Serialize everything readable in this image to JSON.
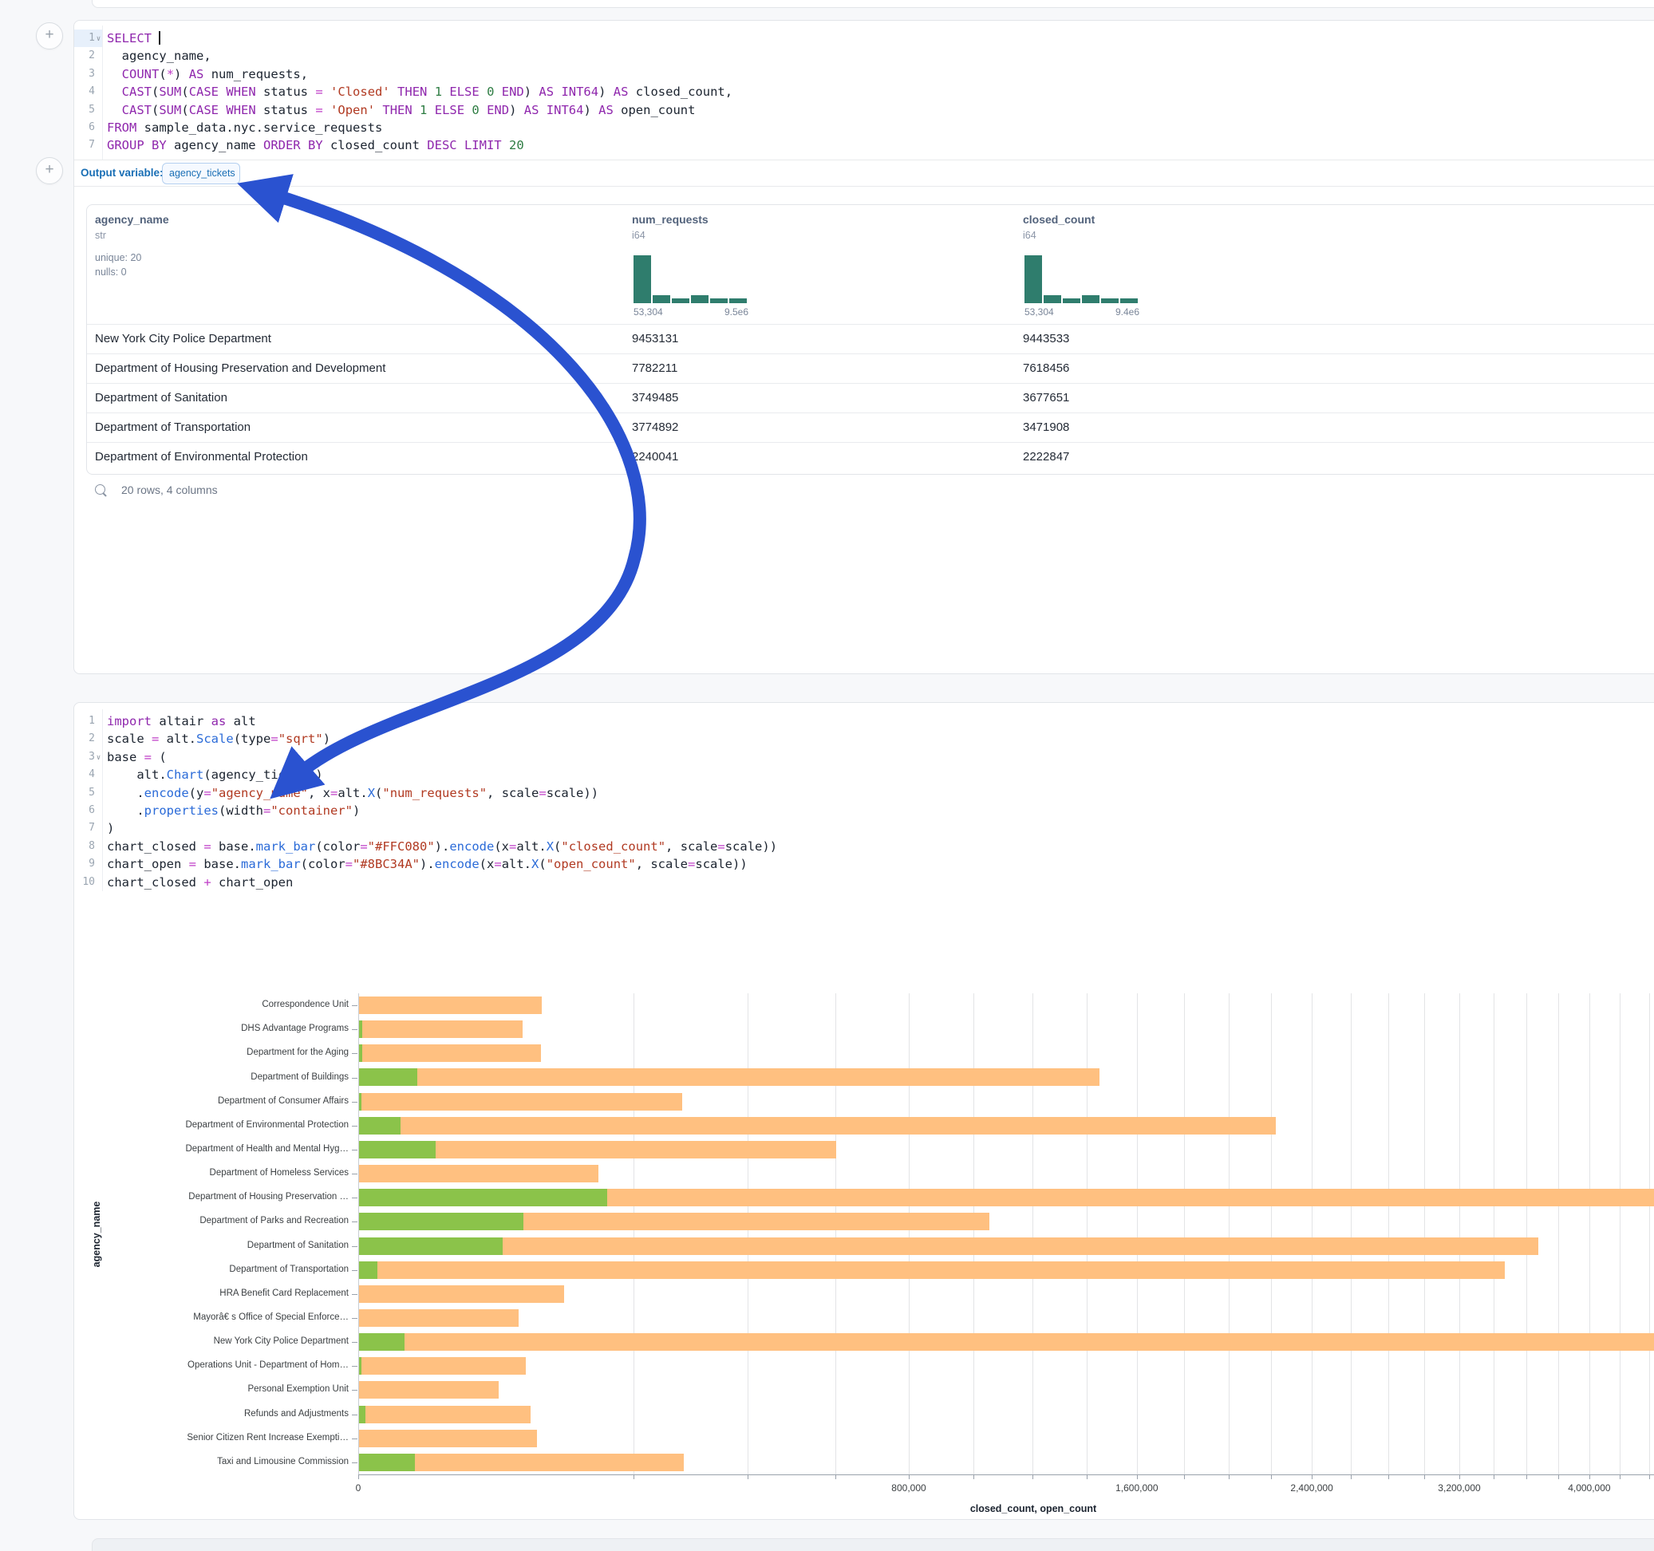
{
  "sql_cell": {
    "output_variable_label": "Output variable:",
    "output_variable_value": "agency_tickets",
    "lines": [
      {
        "n": "1",
        "fold": true,
        "active": true,
        "cursor": true,
        "tokens": [
          [
            "k",
            "SELECT"
          ],
          [
            "t",
            " "
          ]
        ]
      },
      {
        "n": "2",
        "tokens": [
          [
            "t",
            "  agency_name,"
          ]
        ]
      },
      {
        "n": "3",
        "tokens": [
          [
            "t",
            "  "
          ],
          [
            "k",
            "COUNT"
          ],
          [
            "t",
            "("
          ],
          [
            "o",
            "*"
          ],
          [
            "t",
            ") "
          ],
          [
            "k",
            "AS"
          ],
          [
            "t",
            " num_requests,"
          ]
        ]
      },
      {
        "n": "4",
        "tokens": [
          [
            "t",
            "  "
          ],
          [
            "k",
            "CAST"
          ],
          [
            "t",
            "("
          ],
          [
            "k",
            "SUM"
          ],
          [
            "t",
            "("
          ],
          [
            "k",
            "CASE"
          ],
          [
            "t",
            " "
          ],
          [
            "k",
            "WHEN"
          ],
          [
            "t",
            " status "
          ],
          [
            "o",
            "="
          ],
          [
            "t",
            " "
          ],
          [
            "s",
            "'Closed'"
          ],
          [
            "t",
            " "
          ],
          [
            "k",
            "THEN"
          ],
          [
            "t",
            " "
          ],
          [
            "n",
            "1"
          ],
          [
            "t",
            " "
          ],
          [
            "k",
            "ELSE"
          ],
          [
            "t",
            " "
          ],
          [
            "n",
            "0"
          ],
          [
            "t",
            " "
          ],
          [
            "k",
            "END"
          ],
          [
            "t",
            ") "
          ],
          [
            "k",
            "AS"
          ],
          [
            "t",
            " "
          ],
          [
            "k",
            "INT64"
          ],
          [
            "t",
            ") "
          ],
          [
            "k",
            "AS"
          ],
          [
            "t",
            " closed_count,"
          ]
        ]
      },
      {
        "n": "5",
        "tokens": [
          [
            "t",
            "  "
          ],
          [
            "k",
            "CAST"
          ],
          [
            "t",
            "("
          ],
          [
            "k",
            "SUM"
          ],
          [
            "t",
            "("
          ],
          [
            "k",
            "CASE"
          ],
          [
            "t",
            " "
          ],
          [
            "k",
            "WHEN"
          ],
          [
            "t",
            " status "
          ],
          [
            "o",
            "="
          ],
          [
            "t",
            " "
          ],
          [
            "s",
            "'Open'"
          ],
          [
            "t",
            " "
          ],
          [
            "k",
            "THEN"
          ],
          [
            "t",
            " "
          ],
          [
            "n",
            "1"
          ],
          [
            "t",
            " "
          ],
          [
            "k",
            "ELSE"
          ],
          [
            "t",
            " "
          ],
          [
            "n",
            "0"
          ],
          [
            "t",
            " "
          ],
          [
            "k",
            "END"
          ],
          [
            "t",
            ") "
          ],
          [
            "k",
            "AS"
          ],
          [
            "t",
            " "
          ],
          [
            "k",
            "INT64"
          ],
          [
            "t",
            ") "
          ],
          [
            "k",
            "AS"
          ],
          [
            "t",
            " open_count"
          ]
        ]
      },
      {
        "n": "6",
        "tokens": [
          [
            "k",
            "FROM"
          ],
          [
            "t",
            " sample_data.nyc.service_requests"
          ]
        ]
      },
      {
        "n": "7",
        "tokens": [
          [
            "k",
            "GROUP BY"
          ],
          [
            "t",
            " agency_name "
          ],
          [
            "k",
            "ORDER BY"
          ],
          [
            "t",
            " closed_count "
          ],
          [
            "k",
            "DESC"
          ],
          [
            "t",
            " "
          ],
          [
            "k",
            "LIMIT"
          ],
          [
            "t",
            " "
          ],
          [
            "n",
            "20"
          ]
        ]
      }
    ]
  },
  "result_table": {
    "columns": [
      {
        "name": "agency_name",
        "dtype": "str",
        "stats": [
          "unique: 20",
          "nulls: 0"
        ]
      },
      {
        "name": "num_requests",
        "dtype": "i64",
        "hist": {
          "bars": [
            1,
            0.17,
            0.1,
            0.16,
            0.1,
            0.1
          ],
          "min_label": "53,304",
          "max_label": "9.5e6",
          "color": "#2f7d6d"
        }
      },
      {
        "name": "closed_count",
        "dtype": "i64",
        "hist": {
          "bars": [
            1,
            0.17,
            0.1,
            0.16,
            0.1,
            0.1
          ],
          "min_label": "53,304",
          "max_label": "9.4e6",
          "color": "#2f7d6d"
        }
      }
    ],
    "rows": [
      [
        "New York City Police Department",
        "9453131",
        "9443533"
      ],
      [
        "Department of Housing Preservation and Development",
        "7782211",
        "7618456"
      ],
      [
        "Department of Sanitation",
        "3749485",
        "3677651"
      ],
      [
        "Department of Transportation",
        "3774892",
        "3471908"
      ],
      [
        "Department of Environmental Protection",
        "2240041",
        "2222847"
      ]
    ],
    "footer": "20 rows, 4 columns"
  },
  "python_cell": {
    "lines": [
      {
        "n": "1",
        "tokens": [
          [
            "k",
            "import"
          ],
          [
            "t",
            " altair "
          ],
          [
            "k",
            "as"
          ],
          [
            "t",
            " alt"
          ]
        ]
      },
      {
        "n": "2",
        "tokens": [
          [
            "t",
            "scale "
          ],
          [
            "o",
            "="
          ],
          [
            "t",
            " alt."
          ],
          [
            "f",
            "Scale"
          ],
          [
            "t",
            "(type"
          ],
          [
            "o",
            "="
          ],
          [
            "s",
            "\"sqrt\""
          ],
          [
            "t",
            ")"
          ]
        ]
      },
      {
        "n": "3",
        "fold": true,
        "tokens": [
          [
            "t",
            "base "
          ],
          [
            "o",
            "="
          ],
          [
            "t",
            " ("
          ]
        ]
      },
      {
        "n": "4",
        "tokens": [
          [
            "t",
            "    alt."
          ],
          [
            "f",
            "Chart"
          ],
          [
            "t",
            "(agency_tickets)"
          ]
        ]
      },
      {
        "n": "5",
        "tokens": [
          [
            "t",
            "    ."
          ],
          [
            "f",
            "encode"
          ],
          [
            "t",
            "(y"
          ],
          [
            "o",
            "="
          ],
          [
            "s",
            "\"agency_name\""
          ],
          [
            "t",
            ", x"
          ],
          [
            "o",
            "="
          ],
          [
            "t",
            "alt."
          ],
          [
            "f",
            "X"
          ],
          [
            "t",
            "("
          ],
          [
            "s",
            "\"num_requests\""
          ],
          [
            "t",
            ", scale"
          ],
          [
            "o",
            "="
          ],
          [
            "t",
            "scale))"
          ]
        ]
      },
      {
        "n": "6",
        "tokens": [
          [
            "t",
            "    ."
          ],
          [
            "f",
            "properties"
          ],
          [
            "t",
            "(width"
          ],
          [
            "o",
            "="
          ],
          [
            "s",
            "\"container\""
          ],
          [
            "t",
            ")"
          ]
        ]
      },
      {
        "n": "7",
        "tokens": [
          [
            "t",
            ")"
          ]
        ]
      },
      {
        "n": "8",
        "tokens": [
          [
            "t",
            "chart_closed "
          ],
          [
            "o",
            "="
          ],
          [
            "t",
            " base."
          ],
          [
            "f",
            "mark_bar"
          ],
          [
            "t",
            "(color"
          ],
          [
            "o",
            "="
          ],
          [
            "s",
            "\"#FFC080\""
          ],
          [
            "t",
            ")."
          ],
          [
            "f",
            "encode"
          ],
          [
            "t",
            "(x"
          ],
          [
            "o",
            "="
          ],
          [
            "t",
            "alt."
          ],
          [
            "f",
            "X"
          ],
          [
            "t",
            "("
          ],
          [
            "s",
            "\"closed_count\""
          ],
          [
            "t",
            ", scale"
          ],
          [
            "o",
            "="
          ],
          [
            "t",
            "scale))"
          ]
        ]
      },
      {
        "n": "9",
        "tokens": [
          [
            "t",
            "chart_open "
          ],
          [
            "o",
            "="
          ],
          [
            "t",
            " base."
          ],
          [
            "f",
            "mark_bar"
          ],
          [
            "t",
            "(color"
          ],
          [
            "o",
            "="
          ],
          [
            "s",
            "\"#8BC34A\""
          ],
          [
            "t",
            ")."
          ],
          [
            "f",
            "encode"
          ],
          [
            "t",
            "(x"
          ],
          [
            "o",
            "="
          ],
          [
            "t",
            "alt."
          ],
          [
            "f",
            "X"
          ],
          [
            "t",
            "("
          ],
          [
            "s",
            "\"open_count\""
          ],
          [
            "t",
            ", scale"
          ],
          [
            "o",
            "="
          ],
          [
            "t",
            "scale))"
          ]
        ]
      },
      {
        "n": "10",
        "tokens": [
          [
            "t",
            "chart_closed "
          ],
          [
            "o",
            "+"
          ],
          [
            "t",
            " chart_open"
          ]
        ]
      }
    ]
  },
  "chart_data": {
    "type": "bar",
    "orientation": "horizontal",
    "x_scale_type": "sqrt",
    "xlabel": "closed_count, open_count",
    "ylabel": "agency_name",
    "x_tick_values": [
      0,
      800000,
      1600000,
      2400000,
      3200000,
      4000000
    ],
    "x_tick_labels": [
      "0",
      "800,000",
      "1,600,000",
      "2,400,000",
      "3,200,000",
      "4,000,000"
    ],
    "gridline_step": 200000,
    "grid": true,
    "legend_position": "none",
    "categories": [
      "Correspondence Unit",
      "DHS Advantage Programs",
      "Department for the Aging",
      "Department of Buildings",
      "Department of Consumer Affairs",
      "Department of Environmental Protection",
      "Department of Health and Mental Hyg…",
      "Department of Homeless Services",
      "Department of Housing Preservation …",
      "Department of Parks and Recreation",
      "Department of Sanitation",
      "Department of Transportation",
      "HRA Benefit Card Replacement",
      "Mayorâ€ s Office of Special Enforce…",
      "New York City Police Department",
      "Operations Unit - Department of Hom…",
      "Personal Exemption Unit",
      "Refunds and Adjustments",
      "Senior Citizen Rent Increase Exempti…",
      "Taxi and Limousine Commission"
    ],
    "series": [
      {
        "name": "closed_count",
        "color": "#FFC080",
        "values": [
          89000,
          71000,
          88000,
          1450000,
          277000,
          2222847,
          603000,
          152000,
          7618456,
          1050000,
          3677651,
          3471908,
          112000,
          68000,
          9443533,
          74000,
          52000,
          78000,
          84000,
          280000
        ]
      },
      {
        "name": "open_count",
        "color": "#8BC34A",
        "values": [
          0,
          40,
          40,
          9200,
          20,
          4700,
          15800,
          0,
          163755,
          72000,
          55000,
          1000,
          0,
          0,
          5600,
          20,
          0,
          150,
          0,
          8500
        ]
      }
    ]
  },
  "annotation_arrow": {
    "color": "#2a52d0"
  }
}
